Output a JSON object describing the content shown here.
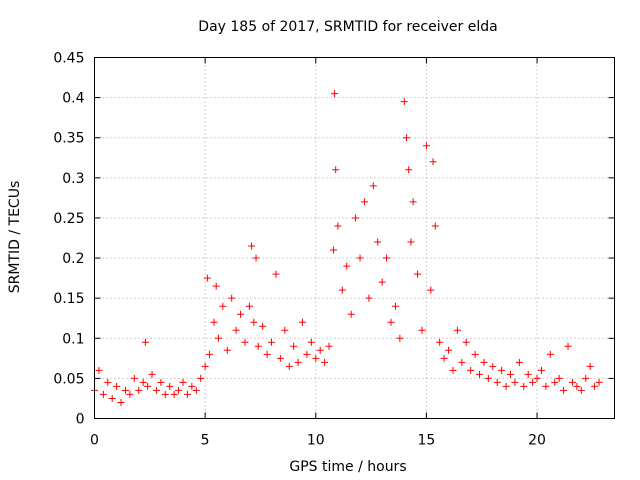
{
  "chart_data": {
    "type": "scatter",
    "title": "Day 185 of 2017, SRMTID for receiver elda",
    "xlabel": "GPS time / hours",
    "ylabel": "SRMTID / TECUs",
    "xlim": [
      0,
      23.5
    ],
    "ylim": [
      0,
      0.45
    ],
    "xticks": [
      0,
      5,
      10,
      15,
      20
    ],
    "xtick_labels": [
      "0",
      "5",
      "10",
      "15",
      "20"
    ],
    "yticks": [
      0,
      0.05,
      0.1,
      0.15,
      0.2,
      0.25,
      0.3,
      0.35,
      0.4,
      0.45
    ],
    "ytick_labels": [
      "0",
      "0.05",
      "0.1",
      "0.15",
      "0.2",
      "0.25",
      "0.3",
      "0.35",
      "0.4",
      "0.45"
    ],
    "grid": true,
    "marker": "+",
    "marker_color": "#ff0000",
    "series": [
      {
        "name": "SRMTID",
        "x": [
          0.0,
          0.2,
          0.4,
          0.6,
          0.8,
          1.0,
          1.2,
          1.4,
          1.6,
          1.8,
          2.0,
          2.2,
          2.3,
          2.4,
          2.6,
          2.8,
          3.0,
          3.2,
          3.4,
          3.6,
          3.8,
          4.0,
          4.2,
          4.4,
          4.6,
          4.8,
          5.0,
          5.1,
          5.2,
          5.4,
          5.5,
          5.6,
          5.8,
          6.0,
          6.2,
          6.4,
          6.6,
          6.8,
          7.0,
          7.1,
          7.2,
          7.3,
          7.4,
          7.6,
          7.8,
          8.0,
          8.2,
          8.4,
          8.6,
          8.8,
          9.0,
          9.2,
          9.4,
          9.6,
          9.8,
          10.0,
          10.2,
          10.4,
          10.6,
          10.8,
          10.85,
          10.9,
          11.0,
          11.2,
          11.4,
          11.6,
          11.8,
          12.0,
          12.2,
          12.4,
          12.6,
          12.8,
          13.0,
          13.2,
          13.4,
          13.6,
          13.8,
          14.0,
          14.1,
          14.2,
          14.3,
          14.4,
          14.6,
          14.8,
          15.0,
          15.2,
          15.3,
          15.4,
          15.6,
          15.8,
          16.0,
          16.2,
          16.4,
          16.6,
          16.8,
          17.0,
          17.2,
          17.4,
          17.6,
          17.8,
          18.0,
          18.2,
          18.4,
          18.6,
          18.8,
          19.0,
          19.2,
          19.4,
          19.6,
          19.8,
          20.0,
          20.2,
          20.4,
          20.6,
          20.8,
          21.0,
          21.2,
          21.4,
          21.6,
          21.8,
          22.0,
          22.2,
          22.4,
          22.6,
          22.8
        ],
        "y": [
          0.035,
          0.06,
          0.03,
          0.045,
          0.025,
          0.04,
          0.02,
          0.035,
          0.03,
          0.05,
          0.035,
          0.045,
          0.095,
          0.04,
          0.055,
          0.035,
          0.045,
          0.03,
          0.04,
          0.03,
          0.035,
          0.045,
          0.03,
          0.04,
          0.035,
          0.05,
          0.065,
          0.175,
          0.08,
          0.12,
          0.165,
          0.1,
          0.14,
          0.085,
          0.15,
          0.11,
          0.13,
          0.095,
          0.14,
          0.215,
          0.12,
          0.2,
          0.09,
          0.115,
          0.08,
          0.095,
          0.18,
          0.075,
          0.11,
          0.065,
          0.09,
          0.07,
          0.12,
          0.08,
          0.095,
          0.075,
          0.085,
          0.07,
          0.09,
          0.21,
          0.405,
          0.31,
          0.24,
          0.16,
          0.19,
          0.13,
          0.25,
          0.2,
          0.27,
          0.15,
          0.29,
          0.22,
          0.17,
          0.2,
          0.12,
          0.14,
          0.1,
          0.395,
          0.35,
          0.31,
          0.22,
          0.27,
          0.18,
          0.11,
          0.34,
          0.16,
          0.32,
          0.24,
          0.095,
          0.075,
          0.085,
          0.06,
          0.11,
          0.07,
          0.095,
          0.06,
          0.08,
          0.055,
          0.07,
          0.05,
          0.065,
          0.045,
          0.06,
          0.04,
          0.055,
          0.045,
          0.07,
          0.04,
          0.055,
          0.045,
          0.05,
          0.06,
          0.04,
          0.08,
          0.045,
          0.05,
          0.035,
          0.09,
          0.045,
          0.04,
          0.035,
          0.05,
          0.065,
          0.04,
          0.045
        ]
      }
    ]
  }
}
